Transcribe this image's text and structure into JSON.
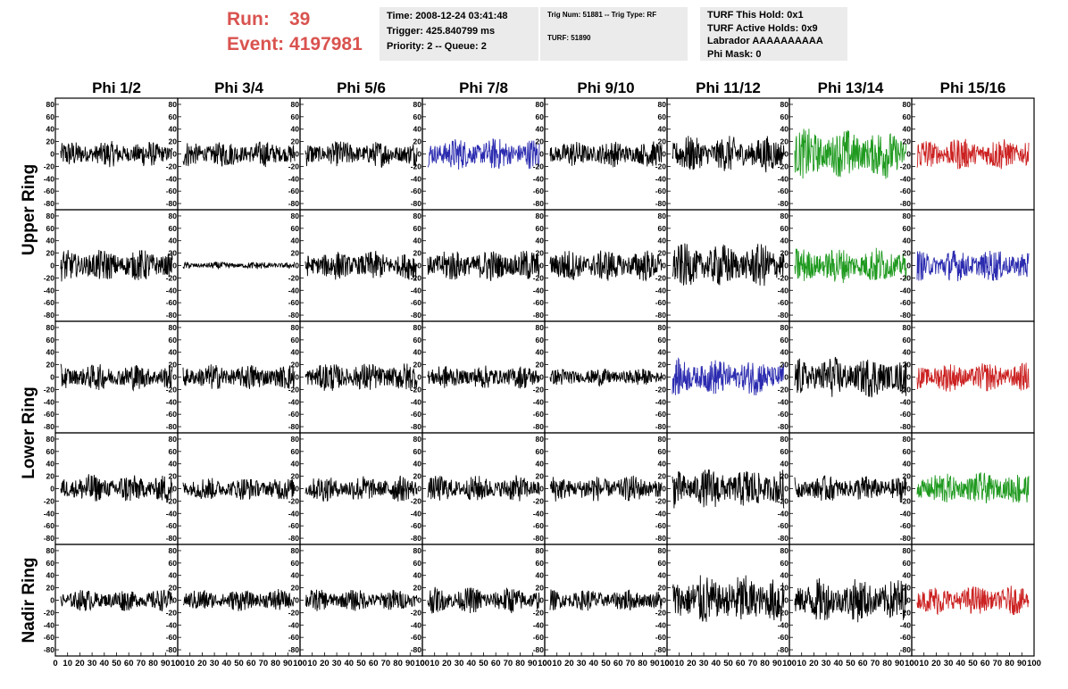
{
  "header": {
    "run_label": "Run:",
    "run_value": "39",
    "event_label": "Event:",
    "event_value": "4197981",
    "time": "Time: 2008-12-24 03:41:48",
    "trigger": "Trigger: 425.840799 ms",
    "priority_queue": "Priority: 2 -- Queue: 2",
    "trig_num_type": "Trig Num: 51881 -- Trig Type: RF",
    "turf": "TURF: 51890",
    "turf_this_hold": "TURF This Hold: 0x1",
    "turf_active_holds": "TURF Active Holds: 0x9",
    "labrador": "Labrador AAAAAAAAAA",
    "phi_mask": "Phi Mask: 0"
  },
  "colors": {
    "run": "#d9534f",
    "black": "#000000",
    "blue": "#2b2bb0",
    "green": "#1f9a1f",
    "red": "#cc2222"
  },
  "chart_data": {
    "type": "line",
    "columns": [
      "Phi 1/2",
      "Phi 3/4",
      "Phi 5/6",
      "Phi 7/8",
      "Phi 9/10",
      "Phi 11/12",
      "Phi 13/14",
      "Phi 15/16"
    ],
    "ring_labels": [
      "Upper Ring",
      "Lower Ring",
      "Nadir Ring"
    ],
    "rows": 5,
    "ylim": [
      -90,
      90
    ],
    "yticks": [
      -80,
      -60,
      -40,
      -20,
      0,
      20,
      40,
      60,
      80
    ],
    "xlim": [
      0,
      100
    ],
    "xticks": [
      0,
      10,
      20,
      30,
      40,
      50,
      60,
      70,
      80,
      90,
      100
    ],
    "trace_color": [
      [
        "black",
        "black",
        "black",
        "blue",
        "black",
        "black",
        "green",
        "red"
      ],
      [
        "black",
        "black",
        "black",
        "black",
        "black",
        "black",
        "green",
        "blue"
      ],
      [
        "black",
        "black",
        "black",
        "black",
        "black",
        "blue",
        "black",
        "red"
      ],
      [
        "black",
        "black",
        "black",
        "black",
        "black",
        "black",
        "black",
        "green"
      ],
      [
        "black",
        "black",
        "black",
        "black",
        "black",
        "black",
        "black",
        "red"
      ]
    ],
    "trace_amplitude": [
      [
        18,
        18,
        18,
        22,
        18,
        25,
        35,
        22
      ],
      [
        22,
        5,
        20,
        22,
        22,
        30,
        25,
        22
      ],
      [
        18,
        18,
        20,
        16,
        12,
        25,
        28,
        20
      ],
      [
        20,
        16,
        18,
        18,
        18,
        28,
        18,
        22
      ],
      [
        15,
        15,
        15,
        18,
        15,
        35,
        30,
        20
      ]
    ],
    "grid": false
  }
}
